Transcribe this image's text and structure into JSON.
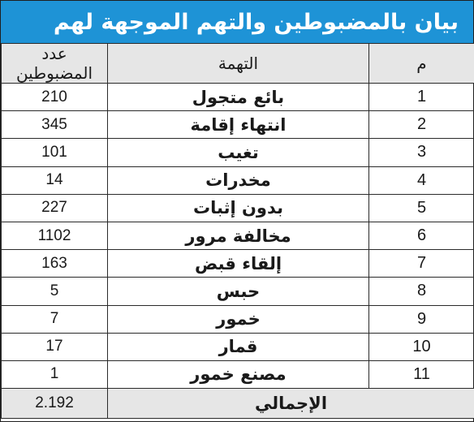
{
  "title": "بيان بالمضبوطين والتهم الموجهة لهم",
  "headers": {
    "num": "م",
    "charge": "التهمة",
    "count": "عدد المضبوطين"
  },
  "rows": [
    {
      "num": "1",
      "charge": "بائع متجول",
      "count": "210"
    },
    {
      "num": "2",
      "charge": "انتهاء إقامة",
      "count": "345"
    },
    {
      "num": "3",
      "charge": "تغيب",
      "count": "101"
    },
    {
      "num": "4",
      "charge": "مخدرات",
      "count": "14"
    },
    {
      "num": "5",
      "charge": "بدون إثبات",
      "count": "227"
    },
    {
      "num": "6",
      "charge": "مخالفة مرور",
      "count": "1102"
    },
    {
      "num": "7",
      "charge": "إلقاء قبض",
      "count": "163"
    },
    {
      "num": "8",
      "charge": "حبس",
      "count": "5"
    },
    {
      "num": "9",
      "charge": "خمور",
      "count": "7"
    },
    {
      "num": "10",
      "charge": "قمار",
      "count": "17"
    },
    {
      "num": "11",
      "charge": "مصنع خمور",
      "count": "1"
    }
  ],
  "total": {
    "label": "الإجمالي",
    "value": "2.192"
  },
  "colors": {
    "banner": "#1e93d6",
    "header_bg": "#e6e6e6",
    "border": "#2a2a2a"
  }
}
